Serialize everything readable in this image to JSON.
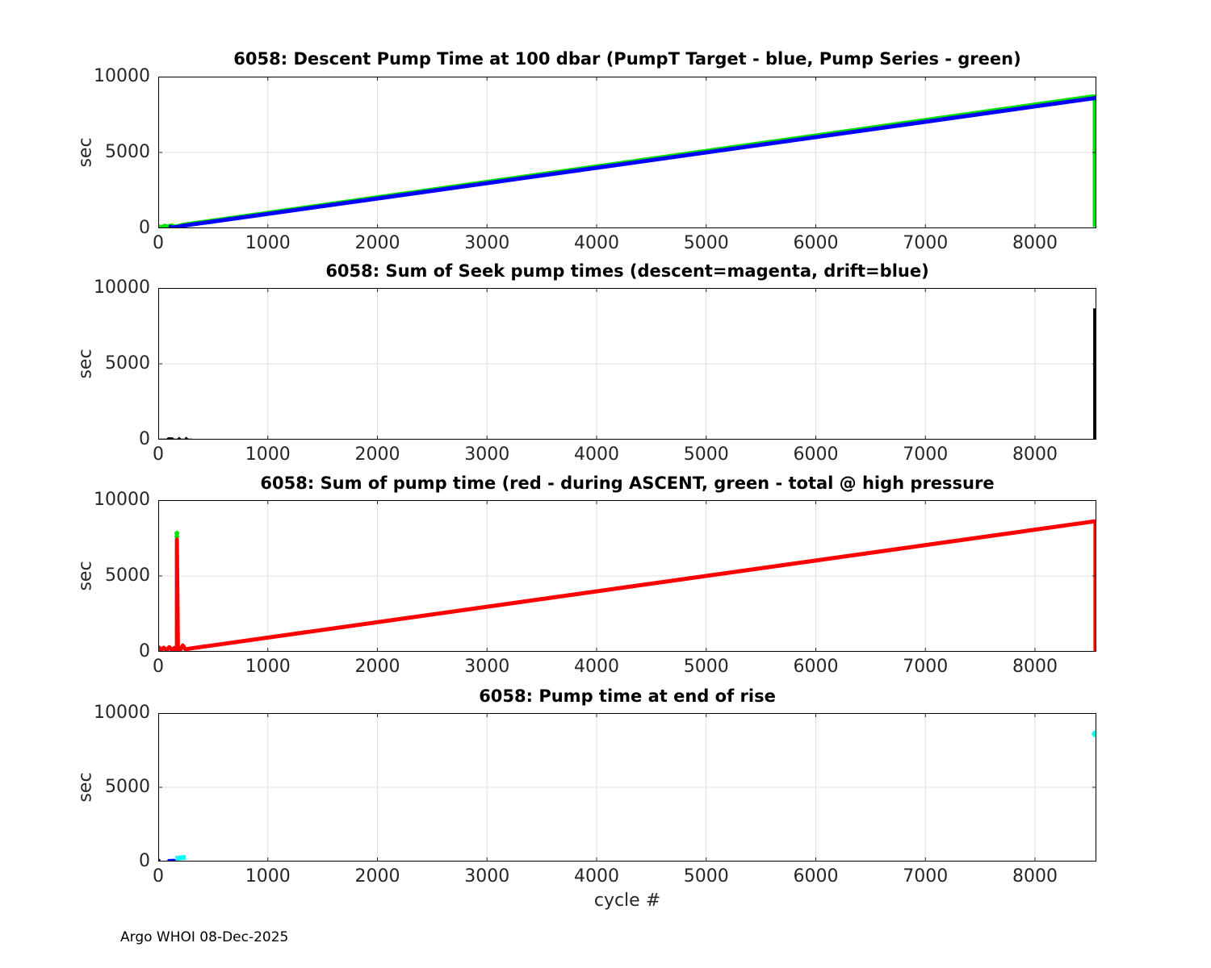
{
  "figure": {
    "footer": "Argo WHOI 08-Dec-2025",
    "background": "#ffffff",
    "axis_color": "#000000",
    "tick_color": "#262626",
    "tick_label_color": "#262626",
    "grid_color": "#e0e0e0"
  },
  "chart_data": [
    {
      "type": "line",
      "title": "6058: Descent Pump Time at 100 dbar (PumpT Target - blue, Pump Series - green)",
      "ylabel": "sec",
      "xlabel": "",
      "xlim": [
        0,
        8560
      ],
      "ylim": [
        0,
        10000
      ],
      "xticks": [
        0,
        1000,
        2000,
        3000,
        4000,
        5000,
        6000,
        7000,
        8000
      ],
      "yticks": [
        0,
        5000,
        10000
      ],
      "grid": true,
      "legend_note": "PumpT Target - blue, Pump Series - green",
      "series": [
        {
          "name": "pump-series-green",
          "color": "#00e300",
          "style": "line",
          "width": 5,
          "points": [
            [
              0,
              140
            ],
            [
              30,
              60
            ],
            [
              60,
              170
            ],
            [
              90,
              100
            ],
            [
              120,
              190
            ],
            [
              150,
              110
            ],
            [
              185,
              150
            ],
            [
              230,
              240
            ],
            [
              8520,
              8690
            ],
            [
              8545,
              8690
            ],
            [
              8545,
              80
            ]
          ]
        },
        {
          "name": "pumpt-target-blue",
          "color": "#0000ff",
          "style": "line",
          "width": 5,
          "points": [
            [
              95,
              120
            ],
            [
              135,
              55
            ],
            [
              175,
              95
            ],
            [
              230,
              170
            ],
            [
              8560,
              8600
            ]
          ]
        }
      ]
    },
    {
      "type": "line",
      "title": "6058: Sum of Seek pump times (descent=magenta, drift=blue)",
      "ylabel": "sec",
      "xlabel": "",
      "xlim": [
        0,
        8560
      ],
      "ylim": [
        0,
        10000
      ],
      "xticks": [
        0,
        1000,
        2000,
        3000,
        4000,
        5000,
        6000,
        7000,
        8000
      ],
      "yticks": [
        0,
        5000,
        10000
      ],
      "grid": true,
      "legend_note": "descent=magenta, drift=blue",
      "series": [
        {
          "name": "seek-pump-low-values",
          "color": "#000000",
          "style": "line",
          "width": 2,
          "points": [
            [
              0,
              15
            ],
            [
              80,
              15
            ],
            [
              90,
              100
            ],
            [
              130,
              100
            ],
            [
              140,
              15
            ],
            [
              180,
              15
            ],
            [
              190,
              120
            ],
            [
              205,
              15
            ],
            [
              245,
              15
            ],
            [
              255,
              130
            ],
            [
              270,
              15
            ],
            [
              310,
              15
            ]
          ]
        },
        {
          "name": "seek-pump-final-spike",
          "color": "#000000",
          "style": "line",
          "width": 5,
          "points": [
            [
              8550,
              8660
            ],
            [
              8550,
              25
            ]
          ]
        }
      ]
    },
    {
      "type": "line",
      "title": "6058: Sum of pump time (red - during ASCENT, green - total @ high pressure",
      "ylabel": "sec",
      "xlabel": "",
      "xlim": [
        0,
        8560
      ],
      "ylim": [
        0,
        10000
      ],
      "xticks": [
        0,
        1000,
        2000,
        3000,
        4000,
        5000,
        6000,
        7000,
        8000
      ],
      "yticks": [
        0,
        5000,
        10000
      ],
      "grid": true,
      "legend_note": "red - during ASCENT, green - total @ high pressure",
      "series": [
        {
          "name": "total-high-pressure-green-dots",
          "color": "#00e300",
          "style": "scatter",
          "size": 3,
          "points": [
            [
              170,
              7600
            ],
            [
              170,
              7820
            ]
          ]
        },
        {
          "name": "ascent-pump-red",
          "color": "#ff0000",
          "style": "line",
          "width": 5,
          "points": [
            [
              0,
              340
            ],
            [
              25,
              110
            ],
            [
              50,
              270
            ],
            [
              75,
              90
            ],
            [
              100,
              310
            ],
            [
              125,
              130
            ],
            [
              148,
              250
            ],
            [
              162,
              110
            ],
            [
              170,
              110
            ],
            [
              170,
              7400
            ],
            [
              180,
              140
            ],
            [
              200,
              110
            ],
            [
              225,
              420
            ],
            [
              250,
              150
            ],
            [
              278,
              200
            ],
            [
              8540,
              8600
            ],
            [
              8552,
              8600
            ],
            [
              8552,
              40
            ]
          ]
        }
      ]
    },
    {
      "type": "line",
      "title": "6058: Pump time at end of rise",
      "ylabel": "sec",
      "xlabel": "cycle #",
      "xlim": [
        0,
        8560
      ],
      "ylim": [
        0,
        10000
      ],
      "xticks": [
        0,
        1000,
        2000,
        3000,
        4000,
        5000,
        6000,
        7000,
        8000
      ],
      "yticks": [
        0,
        5000,
        10000
      ],
      "grid": true,
      "legend_note": "",
      "series": [
        {
          "name": "end-rise-blue-dots",
          "color": "#0000ff",
          "style": "scatter",
          "size": 2.5,
          "points": [
            [
              3,
              60
            ],
            [
              100,
              45
            ],
            [
              122,
              50
            ],
            [
              142,
              55
            ]
          ]
        },
        {
          "name": "end-rise-cyan",
          "color": "#00ffff",
          "style": "line",
          "width": 6,
          "points": [
            [
              158,
              190
            ],
            [
              200,
              250
            ],
            [
              252,
              270
            ]
          ]
        },
        {
          "name": "end-rise-cyan-final",
          "color": "#00ffff",
          "style": "scatter",
          "size": 4,
          "points": [
            [
              8548,
              8600
            ]
          ]
        }
      ]
    }
  ]
}
